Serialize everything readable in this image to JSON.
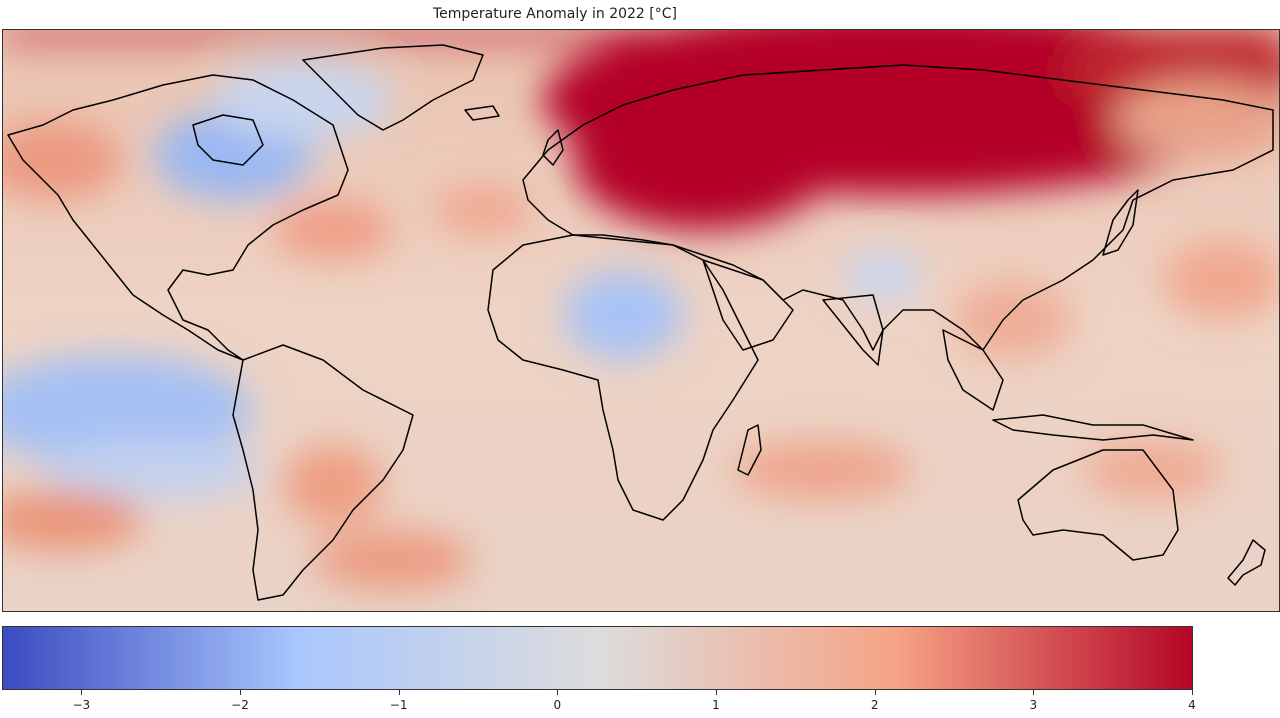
{
  "title": "Temperature Anomaly in 2022 [°C]",
  "colorbar": {
    "colors": [
      "#3b4cc0",
      "#aac7fd",
      "#dddcdc",
      "#f6a385",
      "#b40426"
    ],
    "min": -3.5,
    "max": 4,
    "ticks": [
      {
        "value": -3,
        "label": "−3"
      },
      {
        "value": -2,
        "label": "−2"
      },
      {
        "value": -1,
        "label": "−1"
      },
      {
        "value": 0,
        "label": "0"
      },
      {
        "value": 1,
        "label": "1"
      },
      {
        "value": 2,
        "label": "2"
      },
      {
        "value": 3,
        "label": "3"
      },
      {
        "value": 4,
        "label": "4"
      }
    ]
  },
  "colors": {
    "strong_warm": "#b40426",
    "warm": "#f4987a",
    "mild_warm": "#eec9b6",
    "neutral": "#dcdcdc",
    "cool": "#b9cff5",
    "cold": "#8fb0f0",
    "border": "#000000"
  }
}
